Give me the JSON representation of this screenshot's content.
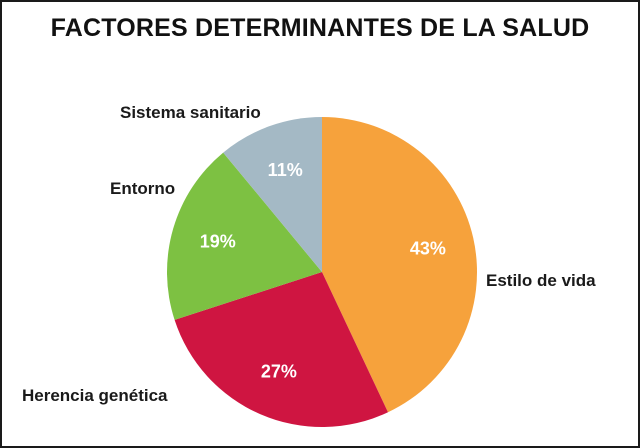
{
  "chart_data": {
    "type": "pie",
    "title": "FACTORES DETERMINANTES DE LA SALUD",
    "slices": [
      {
        "label": "Estilo de vida",
        "value": 43,
        "value_label": "43%",
        "color": "#f6a23c"
      },
      {
        "label": "Herencia genética",
        "value": 27,
        "value_label": "27%",
        "color": "#cf1541"
      },
      {
        "label": "Entorno",
        "value": 19,
        "value_label": "19%",
        "color": "#7dc142"
      },
      {
        "label": "Sistema sanitario",
        "value": 11,
        "value_label": "11%",
        "color": "#a4b9c5"
      }
    ],
    "start_direction": "top",
    "direction": "clockwise",
    "legend": "none"
  }
}
